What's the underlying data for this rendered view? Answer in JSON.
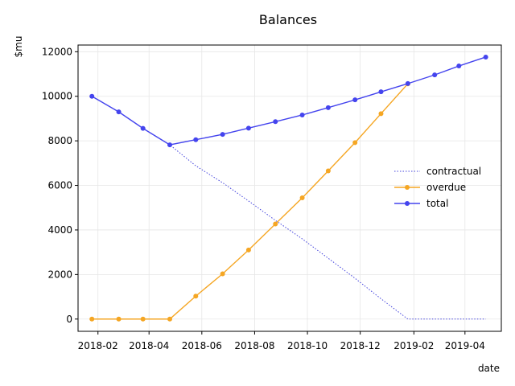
{
  "chart_data": {
    "type": "line",
    "title": "Balances",
    "xlabel": "date",
    "ylabel": "$mu",
    "x": [
      "2018-01-25",
      "2018-02-25",
      "2018-03-25",
      "2018-04-25",
      "2018-05-25",
      "2018-06-25",
      "2018-07-25",
      "2018-08-25",
      "2018-09-25",
      "2018-10-25",
      "2018-11-25",
      "2018-12-25",
      "2019-01-25",
      "2019-02-25",
      "2019-03-25",
      "2019-04-25"
    ],
    "xticks": [
      "2018-02",
      "2018-04",
      "2018-06",
      "2018-08",
      "2018-10",
      "2018-12",
      "2019-02",
      "2019-04"
    ],
    "xlim": [
      "2018-01-09",
      "2019-05-13"
    ],
    "ylim": [
      -550,
      12300
    ],
    "yticks": [
      0,
      2000,
      4000,
      6000,
      8000,
      10000,
      12000
    ],
    "grid": true,
    "legend_position": "center-right",
    "series": [
      {
        "name": "contractual",
        "style": "dotted",
        "markers": false,
        "color": "#4444dd",
        "values": [
          10000,
          9300,
          8560,
          7820,
          6880,
          6120,
          5300,
          4430,
          3600,
          2730,
          1830,
          910,
          0,
          0,
          0,
          0
        ]
      },
      {
        "name": "overdue",
        "style": "solid",
        "markers": true,
        "color": "#f5a623",
        "values": [
          0,
          0,
          0,
          0,
          1030,
          2030,
          3100,
          4270,
          5440,
          6650,
          7920,
          9220,
          10560,
          null,
          null,
          null
        ]
      },
      {
        "name": "total",
        "style": "solid",
        "markers": true,
        "color": "#4444ee",
        "values": [
          10000,
          9300,
          8560,
          7820,
          8050,
          8290,
          8570,
          8860,
          9160,
          9490,
          9840,
          10200,
          10570,
          10960,
          11360,
          11760
        ]
      }
    ]
  }
}
